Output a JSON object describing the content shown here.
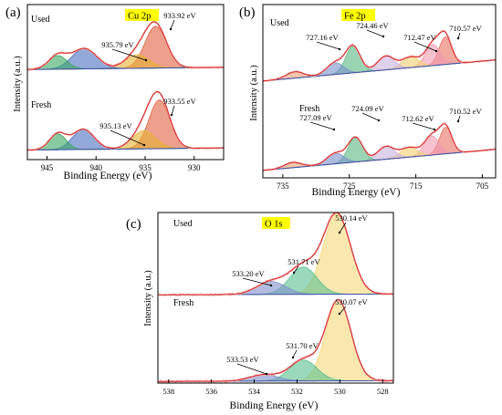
{
  "chart_data": [
    {
      "panel": "(a)",
      "element": "Cu 2p",
      "type": "line",
      "subtype": "xps-deconvolution",
      "xlabel": "Binding Energy (eV)",
      "ylabel": "Intensity (a.u.)",
      "x_ticks": [
        945,
        940,
        935,
        930
      ],
      "xlim": [
        947,
        927
      ],
      "x_reversed": true,
      "highlight_color": "#ffff00",
      "series": [
        {
          "name": "Used",
          "baseline": [
            0.06,
            0.1
          ],
          "peaks": [
            {
              "center": 933.92,
              "height": 0.74,
              "fwhm": 2.6,
              "color": "#e06040",
              "label": "933.92 eV"
            },
            {
              "center": 935.79,
              "height": 0.24,
              "fwhm": 2.8,
              "color": "#e8b030",
              "label": "935.79 eV"
            },
            {
              "center": 941.2,
              "height": 0.36,
              "fwhm": 3.0,
              "color": "#4a6fc0"
            },
            {
              "center": 943.9,
              "height": 0.24,
              "fwhm": 2.2,
              "color": "#3aa860"
            }
          ]
        },
        {
          "name": "Fresh",
          "baseline": [
            0.06,
            0.1
          ],
          "peaks": [
            {
              "center": 933.55,
              "height": 0.92,
              "fwhm": 2.5,
              "color": "#e06040",
              "label": "933.55 eV"
            },
            {
              "center": 935.13,
              "height": 0.34,
              "fwhm": 2.8,
              "color": "#e8b030",
              "label": "935.13 eV"
            },
            {
              "center": 941.3,
              "height": 0.38,
              "fwhm": 2.6,
              "color": "#4a6fc0"
            },
            {
              "center": 943.9,
              "height": 0.3,
              "fwhm": 2.0,
              "color": "#3aa860"
            }
          ]
        }
      ]
    },
    {
      "panel": "(b)",
      "element": "Fe 2p",
      "type": "line",
      "subtype": "xps-deconvolution",
      "xlabel": "Binding Energy (eV)",
      "ylabel": "Intensity (a.u.)",
      "x_ticks": [
        735,
        725,
        715,
        705
      ],
      "xlim": [
        738,
        703
      ],
      "x_reversed": true,
      "highlight_color": "#ffff00",
      "series": [
        {
          "name": "Used",
          "baseline": [
            0.02,
            0.42
          ],
          "peaks": [
            {
              "center": 710.57,
              "height": 0.52,
              "fwhm": 2.2,
              "color": "#e87060",
              "label": "710.57 eV"
            },
            {
              "center": 712.47,
              "height": 0.4,
              "fwhm": 2.6,
              "color": "#f09ab0",
              "label": "712.47 eV"
            },
            {
              "center": 715.8,
              "height": 0.2,
              "fwhm": 3.0,
              "color": "#f2d070"
            },
            {
              "center": 719.5,
              "height": 0.26,
              "fwhm": 3.0,
              "color": "#c9b0e0"
            },
            {
              "center": 724.46,
              "height": 0.5,
              "fwhm": 2.6,
              "color": "#58b880",
              "label": "724.46 eV"
            },
            {
              "center": 727.16,
              "height": 0.22,
              "fwhm": 3.0,
              "color": "#7890cc",
              "label": "727.16 eV"
            },
            {
              "center": 733.2,
              "height": 0.12,
              "fwhm": 3.0,
              "color": "#e8a070"
            }
          ]
        },
        {
          "name": "Fresh",
          "baseline": [
            0.02,
            0.42
          ],
          "peaks": [
            {
              "center": 710.52,
              "height": 0.5,
              "fwhm": 2.2,
              "color": "#e87060",
              "label": "710.52 eV"
            },
            {
              "center": 712.62,
              "height": 0.36,
              "fwhm": 2.6,
              "color": "#f09ab0",
              "label": "712.62 eV"
            },
            {
              "center": 716.0,
              "height": 0.18,
              "fwhm": 3.0,
              "color": "#f2d070"
            },
            {
              "center": 719.5,
              "height": 0.24,
              "fwhm": 3.0,
              "color": "#c9b0e0"
            },
            {
              "center": 724.09,
              "height": 0.46,
              "fwhm": 2.6,
              "color": "#58b880",
              "label": "724.09 eV"
            },
            {
              "center": 727.09,
              "height": 0.2,
              "fwhm": 3.0,
              "color": "#7890cc",
              "label": "727.09 eV"
            },
            {
              "center": 733.5,
              "height": 0.1,
              "fwhm": 3.0,
              "color": "#e8a070"
            }
          ]
        }
      ]
    },
    {
      "panel": "(c)",
      "element": "O 1s",
      "type": "line",
      "subtype": "xps-deconvolution",
      "xlabel": "Binding Energy (eV)",
      "ylabel": "Intensity (a.u.)",
      "x_ticks": [
        538,
        536,
        534,
        532,
        530,
        528
      ],
      "xlim": [
        538.5,
        527.5
      ],
      "x_reversed": true,
      "highlight_color": "#ffff00",
      "series": [
        {
          "name": "Used",
          "baseline": [
            0.02,
            0.03
          ],
          "peaks": [
            {
              "center": 530.14,
              "height": 1.0,
              "fwhm": 1.5,
              "color": "#f5d878",
              "label": "530.14 eV"
            },
            {
              "center": 531.71,
              "height": 0.34,
              "fwhm": 1.5,
              "color": "#58c090",
              "label": "531.71 eV"
            },
            {
              "center": 533.2,
              "height": 0.16,
              "fwhm": 1.6,
              "color": "#8090cc",
              "label": "533.20 eV"
            }
          ]
        },
        {
          "name": "Fresh",
          "baseline": [
            0.02,
            0.03
          ],
          "peaks": [
            {
              "center": 530.07,
              "height": 1.0,
              "fwhm": 1.4,
              "color": "#f5d878",
              "label": "530.07 eV"
            },
            {
              "center": 531.7,
              "height": 0.26,
              "fwhm": 1.5,
              "color": "#58c090",
              "label": "531.70 eV"
            },
            {
              "center": 533.53,
              "height": 0.08,
              "fwhm": 1.6,
              "color": "#8090cc",
              "label": "533.53 eV"
            }
          ]
        }
      ]
    }
  ]
}
